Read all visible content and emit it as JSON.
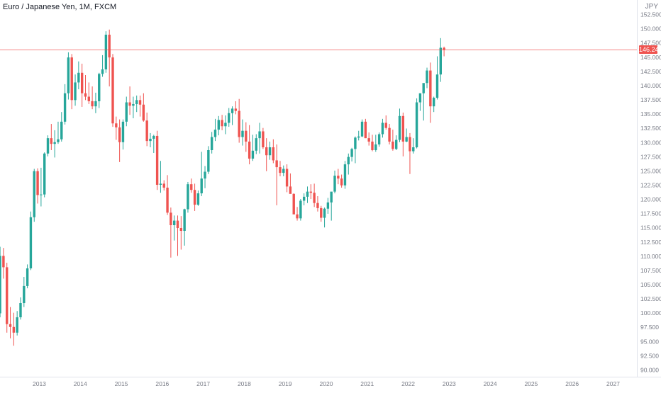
{
  "title": "Euro / Japanese Yen, 1M, FXCM",
  "currency": "JPY",
  "last_price": "146.240",
  "colors": {
    "up": "#26a69a",
    "down": "#ef5350",
    "grid": "#f0f3fa",
    "axis_text": "#787b86",
    "price_line": "#ef5350"
  },
  "chart_data": {
    "type": "candlestick",
    "title": "Euro / Japanese Yen, 1M, FXCM",
    "ylabel": "JPY",
    "ylim": [
      88.75,
      155.0
    ],
    "y_ticks": [
      "90.000",
      "92.500",
      "95.000",
      "97.500",
      "100.000",
      "102.500",
      "105.000",
      "107.500",
      "110.000",
      "112.500",
      "115.000",
      "117.500",
      "120.000",
      "122.500",
      "125.000",
      "127.500",
      "130.000",
      "132.500",
      "135.000",
      "137.500",
      "140.000",
      "142.500",
      "145.000",
      "147.500",
      "150.000",
      "152.500"
    ],
    "x_ticks": [
      "2013",
      "2014",
      "2015",
      "2016",
      "2017",
      "2018",
      "2019",
      "2020",
      "2021",
      "2022",
      "2023",
      "2024",
      "2025",
      "2026",
      "2027"
    ],
    "x_range": [
      2012.04,
      2027.58
    ],
    "grid": false,
    "last_value": 146.24,
    "candles": [
      {
        "t": "2012-01",
        "o": 99.9,
        "h": 111.6,
        "l": 99.2,
        "c": 110.0
      },
      {
        "t": "2012-02",
        "o": 110.0,
        "h": 111.4,
        "l": 106.0,
        "c": 108.0
      },
      {
        "t": "2012-03",
        "o": 108.0,
        "h": 108.8,
        "l": 96.5,
        "c": 98.0
      },
      {
        "t": "2012-04",
        "o": 98.0,
        "h": 101.0,
        "l": 95.5,
        "c": 97.5
      },
      {
        "t": "2012-05",
        "o": 97.5,
        "h": 100.0,
        "l": 94.2,
        "c": 96.5
      },
      {
        "t": "2012-06",
        "o": 96.5,
        "h": 100.3,
        "l": 96.0,
        "c": 99.2
      },
      {
        "t": "2012-07",
        "o": 99.2,
        "h": 102.7,
        "l": 98.8,
        "c": 101.7
      },
      {
        "t": "2012-08",
        "o": 101.7,
        "h": 106.3,
        "l": 101.0,
        "c": 104.7
      },
      {
        "t": "2012-09",
        "o": 104.7,
        "h": 108.5,
        "l": 104.3,
        "c": 107.8
      },
      {
        "t": "2012-10",
        "o": 107.8,
        "h": 117.8,
        "l": 107.5,
        "c": 116.8
      },
      {
        "t": "2012-11",
        "o": 116.8,
        "h": 125.3,
        "l": 116.0,
        "c": 124.9
      },
      {
        "t": "2012-12",
        "o": 124.9,
        "h": 125.4,
        "l": 119.2,
        "c": 120.7
      },
      {
        "t": "2013-01",
        "o": 120.7,
        "h": 125.5,
        "l": 118.7,
        "c": 120.8
      },
      {
        "t": "2013-02",
        "o": 120.8,
        "h": 128.2,
        "l": 120.3,
        "c": 128.0
      },
      {
        "t": "2013-03",
        "o": 128.0,
        "h": 131.2,
        "l": 127.5,
        "c": 130.7
      },
      {
        "t": "2013-04",
        "o": 130.7,
        "h": 133.2,
        "l": 128.6,
        "c": 129.7
      },
      {
        "t": "2013-05",
        "o": 129.7,
        "h": 132.1,
        "l": 127.3,
        "c": 130.0
      },
      {
        "t": "2013-06",
        "o": 130.0,
        "h": 133.6,
        "l": 129.7,
        "c": 130.5
      },
      {
        "t": "2013-07",
        "o": 130.5,
        "h": 135.3,
        "l": 130.1,
        "c": 133.6
      },
      {
        "t": "2013-08",
        "o": 133.6,
        "h": 140.2,
        "l": 133.1,
        "c": 138.6
      },
      {
        "t": "2013-09",
        "o": 138.6,
        "h": 145.8,
        "l": 137.5,
        "c": 144.9
      },
      {
        "t": "2013-10",
        "o": 144.9,
        "h": 145.5,
        "l": 135.8,
        "c": 137.4
      },
      {
        "t": "2013-11",
        "o": 137.4,
        "h": 141.9,
        "l": 136.4,
        "c": 140.5
      },
      {
        "t": "2013-12",
        "o": 140.5,
        "h": 144.2,
        "l": 139.3,
        "c": 142.2
      },
      {
        "t": "2014-01",
        "o": 142.2,
        "h": 143.8,
        "l": 136.2,
        "c": 138.6
      },
      {
        "t": "2014-02",
        "o": 138.6,
        "h": 141.8,
        "l": 137.4,
        "c": 138.0
      },
      {
        "t": "2014-03",
        "o": 138.0,
        "h": 140.5,
        "l": 136.7,
        "c": 137.2
      },
      {
        "t": "2014-04",
        "o": 137.2,
        "h": 139.8,
        "l": 135.8,
        "c": 136.3
      },
      {
        "t": "2014-05",
        "o": 136.3,
        "h": 138.7,
        "l": 135.1,
        "c": 137.2
      },
      {
        "t": "2014-06",
        "o": 137.2,
        "h": 142.2,
        "l": 136.0,
        "c": 142.0
      },
      {
        "t": "2014-07",
        "o": 142.0,
        "h": 145.3,
        "l": 141.5,
        "c": 142.8
      },
      {
        "t": "2014-08",
        "o": 142.8,
        "h": 149.5,
        "l": 142.2,
        "c": 148.9
      },
      {
        "t": "2014-09",
        "o": 148.9,
        "h": 149.8,
        "l": 139.8,
        "c": 144.9
      },
      {
        "t": "2014-10",
        "o": 144.9,
        "h": 145.5,
        "l": 132.7,
        "c": 133.3
      },
      {
        "t": "2014-11",
        "o": 133.3,
        "h": 134.5,
        "l": 130.4,
        "c": 132.6
      },
      {
        "t": "2014-12",
        "o": 132.6,
        "h": 134.0,
        "l": 126.5,
        "c": 130.0
      },
      {
        "t": "2015-01",
        "o": 130.0,
        "h": 134.0,
        "l": 128.7,
        "c": 133.6
      },
      {
        "t": "2015-02",
        "o": 133.6,
        "h": 138.0,
        "l": 132.8,
        "c": 137.0
      },
      {
        "t": "2015-03",
        "o": 137.0,
        "h": 139.8,
        "l": 134.8,
        "c": 136.4
      },
      {
        "t": "2015-04",
        "o": 136.4,
        "h": 138.0,
        "l": 134.2,
        "c": 136.7
      },
      {
        "t": "2015-05",
        "o": 136.7,
        "h": 138.2,
        "l": 135.3,
        "c": 137.4
      },
      {
        "t": "2015-06",
        "o": 137.4,
        "h": 138.2,
        "l": 134.5,
        "c": 136.6
      },
      {
        "t": "2015-07",
        "o": 136.6,
        "h": 138.6,
        "l": 133.6,
        "c": 133.8
      },
      {
        "t": "2015-08",
        "o": 133.8,
        "h": 135.2,
        "l": 129.3,
        "c": 130.2
      },
      {
        "t": "2015-09",
        "o": 130.2,
        "h": 131.6,
        "l": 129.1,
        "c": 130.6
      },
      {
        "t": "2015-10",
        "o": 130.6,
        "h": 131.3,
        "l": 128.1,
        "c": 131.1
      },
      {
        "t": "2015-11",
        "o": 131.1,
        "h": 132.0,
        "l": 121.6,
        "c": 122.5
      },
      {
        "t": "2015-12",
        "o": 122.5,
        "h": 126.7,
        "l": 121.1,
        "c": 122.7
      },
      {
        "t": "2016-01",
        "o": 122.7,
        "h": 123.3,
        "l": 121.5,
        "c": 122.0
      },
      {
        "t": "2016-02",
        "o": 122.0,
        "h": 124.2,
        "l": 117.2,
        "c": 117.6
      },
      {
        "t": "2016-03",
        "o": 117.6,
        "h": 118.5,
        "l": 109.7,
        "c": 115.4
      },
      {
        "t": "2016-04",
        "o": 115.4,
        "h": 117.1,
        "l": 112.7,
        "c": 116.2
      },
      {
        "t": "2016-05",
        "o": 116.2,
        "h": 117.1,
        "l": 110.0,
        "c": 114.9
      },
      {
        "t": "2016-06",
        "o": 114.9,
        "h": 117.0,
        "l": 111.1,
        "c": 114.4
      },
      {
        "t": "2016-07",
        "o": 114.4,
        "h": 118.3,
        "l": 111.8,
        "c": 118.2
      },
      {
        "t": "2016-08",
        "o": 118.2,
        "h": 123.0,
        "l": 117.6,
        "c": 122.6
      },
      {
        "t": "2016-09",
        "o": 122.6,
        "h": 123.6,
        "l": 121.1,
        "c": 121.6
      },
      {
        "t": "2016-10",
        "o": 121.6,
        "h": 122.7,
        "l": 117.9,
        "c": 119.0
      },
      {
        "t": "2016-11",
        "o": 119.0,
        "h": 121.5,
        "l": 118.8,
        "c": 121.0
      },
      {
        "t": "2016-12",
        "o": 121.0,
        "h": 128.3,
        "l": 120.5,
        "c": 123.6
      },
      {
        "t": "2017-01",
        "o": 123.6,
        "h": 125.8,
        "l": 121.9,
        "c": 124.8
      },
      {
        "t": "2017-02",
        "o": 124.8,
        "h": 129.3,
        "l": 124.4,
        "c": 128.6
      },
      {
        "t": "2017-03",
        "o": 128.6,
        "h": 131.8,
        "l": 128.0,
        "c": 130.9
      },
      {
        "t": "2017-04",
        "o": 130.9,
        "h": 134.1,
        "l": 130.2,
        "c": 132.2
      },
      {
        "t": "2017-05",
        "o": 132.2,
        "h": 134.6,
        "l": 131.2,
        "c": 133.9
      },
      {
        "t": "2017-06",
        "o": 133.9,
        "h": 134.8,
        "l": 132.1,
        "c": 132.8
      },
      {
        "t": "2017-07",
        "o": 132.8,
        "h": 134.7,
        "l": 131.4,
        "c": 133.4
      },
      {
        "t": "2017-08",
        "o": 133.4,
        "h": 136.0,
        "l": 132.7,
        "c": 135.1
      },
      {
        "t": "2017-09",
        "o": 135.1,
        "h": 136.3,
        "l": 133.0,
        "c": 135.9
      },
      {
        "t": "2017-10",
        "o": 135.9,
        "h": 137.2,
        "l": 134.9,
        "c": 135.5
      },
      {
        "t": "2017-11",
        "o": 135.5,
        "h": 137.6,
        "l": 129.9,
        "c": 130.9
      },
      {
        "t": "2017-12",
        "o": 130.9,
        "h": 134.0,
        "l": 129.4,
        "c": 132.0
      },
      {
        "t": "2018-01",
        "o": 132.0,
        "h": 133.5,
        "l": 128.3,
        "c": 130.1
      },
      {
        "t": "2018-02",
        "o": 130.1,
        "h": 133.0,
        "l": 126.1,
        "c": 127.1
      },
      {
        "t": "2018-03",
        "o": 127.1,
        "h": 131.3,
        "l": 126.7,
        "c": 128.5
      },
      {
        "t": "2018-04",
        "o": 128.5,
        "h": 131.4,
        "l": 127.9,
        "c": 130.7
      },
      {
        "t": "2018-05",
        "o": 130.7,
        "h": 133.4,
        "l": 128.0,
        "c": 131.9
      },
      {
        "t": "2018-06",
        "o": 131.9,
        "h": 132.5,
        "l": 128.8,
        "c": 129.1
      },
      {
        "t": "2018-07",
        "o": 129.1,
        "h": 130.7,
        "l": 124.9,
        "c": 127.7
      },
      {
        "t": "2018-08",
        "o": 127.7,
        "h": 130.1,
        "l": 126.9,
        "c": 129.1
      },
      {
        "t": "2018-09",
        "o": 129.1,
        "h": 130.5,
        "l": 126.3,
        "c": 126.8
      },
      {
        "t": "2018-10",
        "o": 126.8,
        "h": 129.6,
        "l": 118.9,
        "c": 125.6
      },
      {
        "t": "2018-11",
        "o": 125.6,
        "h": 126.7,
        "l": 124.0,
        "c": 124.6
      },
      {
        "t": "2018-12",
        "o": 124.6,
        "h": 125.9,
        "l": 124.0,
        "c": 125.3
      },
      {
        "t": "2019-01",
        "o": 125.3,
        "h": 126.1,
        "l": 121.2,
        "c": 122.2
      },
      {
        "t": "2019-02",
        "o": 122.2,
        "h": 124.5,
        "l": 121.0,
        "c": 120.9
      },
      {
        "t": "2019-03",
        "o": 120.9,
        "h": 121.0,
        "l": 117.6,
        "c": 117.3
      },
      {
        "t": "2019-04",
        "o": 117.3,
        "h": 118.6,
        "l": 116.2,
        "c": 116.6
      },
      {
        "t": "2019-05",
        "o": 116.6,
        "h": 120.0,
        "l": 116.2,
        "c": 119.7
      },
      {
        "t": "2019-06",
        "o": 119.7,
        "h": 121.0,
        "l": 118.9,
        "c": 120.4
      },
      {
        "t": "2019-07",
        "o": 120.4,
        "h": 122.2,
        "l": 119.3,
        "c": 121.3
      },
      {
        "t": "2019-08",
        "o": 121.3,
        "h": 122.6,
        "l": 120.0,
        "c": 121.1
      },
      {
        "t": "2019-09",
        "o": 121.1,
        "h": 122.7,
        "l": 118.6,
        "c": 119.3
      },
      {
        "t": "2019-10",
        "o": 119.3,
        "h": 120.5,
        "l": 117.8,
        "c": 118.4
      },
      {
        "t": "2019-11",
        "o": 118.4,
        "h": 118.8,
        "l": 116.0,
        "c": 116.7
      },
      {
        "t": "2019-12",
        "o": 116.7,
        "h": 118.5,
        "l": 115.0,
        "c": 118.3
      },
      {
        "t": "2020-01",
        "o": 118.3,
        "h": 120.2,
        "l": 117.4,
        "c": 119.4
      },
      {
        "t": "2020-02",
        "o": 119.4,
        "h": 121.0,
        "l": 116.2,
        "c": 121.3
      },
      {
        "t": "2020-03",
        "o": 121.3,
        "h": 125.0,
        "l": 121.0,
        "c": 124.1
      },
      {
        "t": "2020-04",
        "o": 124.1,
        "h": 125.3,
        "l": 122.6,
        "c": 123.6
      },
      {
        "t": "2020-05",
        "o": 123.6,
        "h": 124.3,
        "l": 122.0,
        "c": 122.4
      },
      {
        "t": "2020-06",
        "o": 122.4,
        "h": 126.7,
        "l": 121.8,
        "c": 126.1
      },
      {
        "t": "2020-07",
        "o": 126.1,
        "h": 128.0,
        "l": 124.3,
        "c": 127.4
      },
      {
        "t": "2020-08",
        "o": 127.4,
        "h": 129.0,
        "l": 126.6,
        "c": 128.8
      },
      {
        "t": "2020-09",
        "o": 128.8,
        "h": 131.0,
        "l": 126.3,
        "c": 130.8
      },
      {
        "t": "2020-10",
        "o": 130.8,
        "h": 132.0,
        "l": 130.3,
        "c": 131.0
      },
      {
        "t": "2020-11",
        "o": 131.0,
        "h": 134.0,
        "l": 130.9,
        "c": 133.6
      },
      {
        "t": "2020-12",
        "o": 133.6,
        "h": 134.1,
        "l": 130.7,
        "c": 130.7
      },
      {
        "t": "2021-01",
        "o": 130.7,
        "h": 131.7,
        "l": 129.4,
        "c": 130.1
      },
      {
        "t": "2021-02",
        "o": 130.1,
        "h": 131.3,
        "l": 128.4,
        "c": 128.6
      },
      {
        "t": "2021-03",
        "o": 128.6,
        "h": 131.3,
        "l": 128.3,
        "c": 129.6
      },
      {
        "t": "2021-04",
        "o": 129.6,
        "h": 131.7,
        "l": 129.2,
        "c": 131.4
      },
      {
        "t": "2021-05",
        "o": 131.4,
        "h": 134.1,
        "l": 130.8,
        "c": 133.4
      },
      {
        "t": "2021-06",
        "o": 133.4,
        "h": 134.7,
        "l": 132.2,
        "c": 132.5
      },
      {
        "t": "2021-07",
        "o": 132.5,
        "h": 133.2,
        "l": 129.6,
        "c": 130.1
      },
      {
        "t": "2021-08",
        "o": 130.1,
        "h": 132.2,
        "l": 128.5,
        "c": 128.8
      },
      {
        "t": "2021-09",
        "o": 128.8,
        "h": 131.2,
        "l": 128.6,
        "c": 130.4
      },
      {
        "t": "2021-10",
        "o": 130.4,
        "h": 135.9,
        "l": 130.0,
        "c": 134.6
      },
      {
        "t": "2021-11",
        "o": 134.6,
        "h": 135.2,
        "l": 127.5,
        "c": 130.1
      },
      {
        "t": "2021-12",
        "o": 130.1,
        "h": 132.4,
        "l": 130.0,
        "c": 130.9
      },
      {
        "t": "2022-01",
        "o": 130.9,
        "h": 131.6,
        "l": 124.4,
        "c": 128.4
      },
      {
        "t": "2022-02",
        "o": 128.4,
        "h": 130.7,
        "l": 128.0,
        "c": 129.1
      },
      {
        "t": "2022-03",
        "o": 129.1,
        "h": 137.7,
        "l": 128.9,
        "c": 137.0
      },
      {
        "t": "2022-04",
        "o": 137.0,
        "h": 138.3,
        "l": 135.5,
        "c": 138.6
      },
      {
        "t": "2022-05",
        "o": 138.6,
        "h": 140.0,
        "l": 133.8,
        "c": 140.4
      },
      {
        "t": "2022-06",
        "o": 140.4,
        "h": 143.1,
        "l": 139.5,
        "c": 142.6
      },
      {
        "t": "2022-07",
        "o": 142.6,
        "h": 144.0,
        "l": 133.4,
        "c": 136.3
      },
      {
        "t": "2022-08",
        "o": 136.3,
        "h": 138.0,
        "l": 135.3,
        "c": 137.8
      },
      {
        "t": "2022-09",
        "o": 137.8,
        "h": 145.1,
        "l": 137.5,
        "c": 141.9
      },
      {
        "t": "2022-10",
        "o": 141.9,
        "h": 148.3,
        "l": 140.6,
        "c": 146.6
      },
      {
        "t": "2022-11",
        "o": 146.6,
        "h": 146.8,
        "l": 145.1,
        "c": 146.24
      }
    ]
  }
}
